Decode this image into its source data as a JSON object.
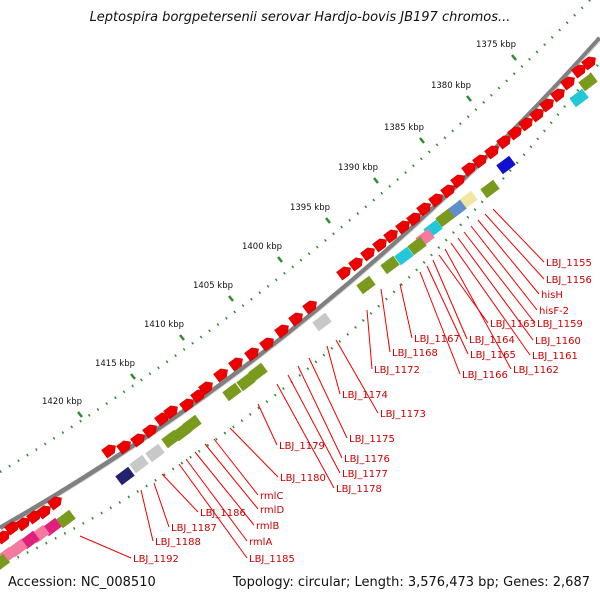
{
  "title": "Leptospira borgpetersenii serovar Hardjo-bovis JB197 chromos...",
  "footer": {
    "accession": "Accession: NC_008510",
    "summary": "Topology: circular; Length: 3,576,473 bp; Genes: 2,687"
  },
  "scale_labels": [
    "1375 kbp",
    "1380 kbp",
    "1385 kbp",
    "1390 kbp",
    "1395 kbp",
    "1400 kbp",
    "1405 kbp",
    "1410 kbp",
    "1415 kbp",
    "1420 kbp"
  ],
  "gene_labels": [
    "LBJ_1155",
    "LBJ_1156",
    "hisH",
    "hisF-2",
    "LBJ_1159",
    "LBJ_1160",
    "LBJ_1161",
    "LBJ_1162",
    "LBJ_1163",
    "LBJ_1164",
    "LBJ_1165",
    "LBJ_1166",
    "LBJ_1167",
    "LBJ_1168",
    "LBJ_1172",
    "LBJ_1173",
    "LBJ_1174",
    "LBJ_1175",
    "LBJ_1176",
    "LBJ_1177",
    "LBJ_1178",
    "LBJ_1179",
    "LBJ_1180",
    "rmlC",
    "rmlD",
    "rmlB",
    "rmlA",
    "LBJ_1185",
    "LBJ_1186",
    "LBJ_1187",
    "LBJ_1188",
    "LBJ_1192"
  ],
  "colors": {
    "backbone": "#808080",
    "gene_forward": "#ee0000",
    "ticks": "#2e8b2e",
    "label": "#cc0000",
    "olive": "#7a9a1e",
    "grey": "#c8c8c8",
    "cyan": "#22c8d8",
    "navy": "#22226e",
    "pink": "#f47aa0",
    "magenta": "#e0207a",
    "yellow": "#f0e8a0",
    "steelblue": "#5f8ec8",
    "blue": "#1010d0"
  }
}
